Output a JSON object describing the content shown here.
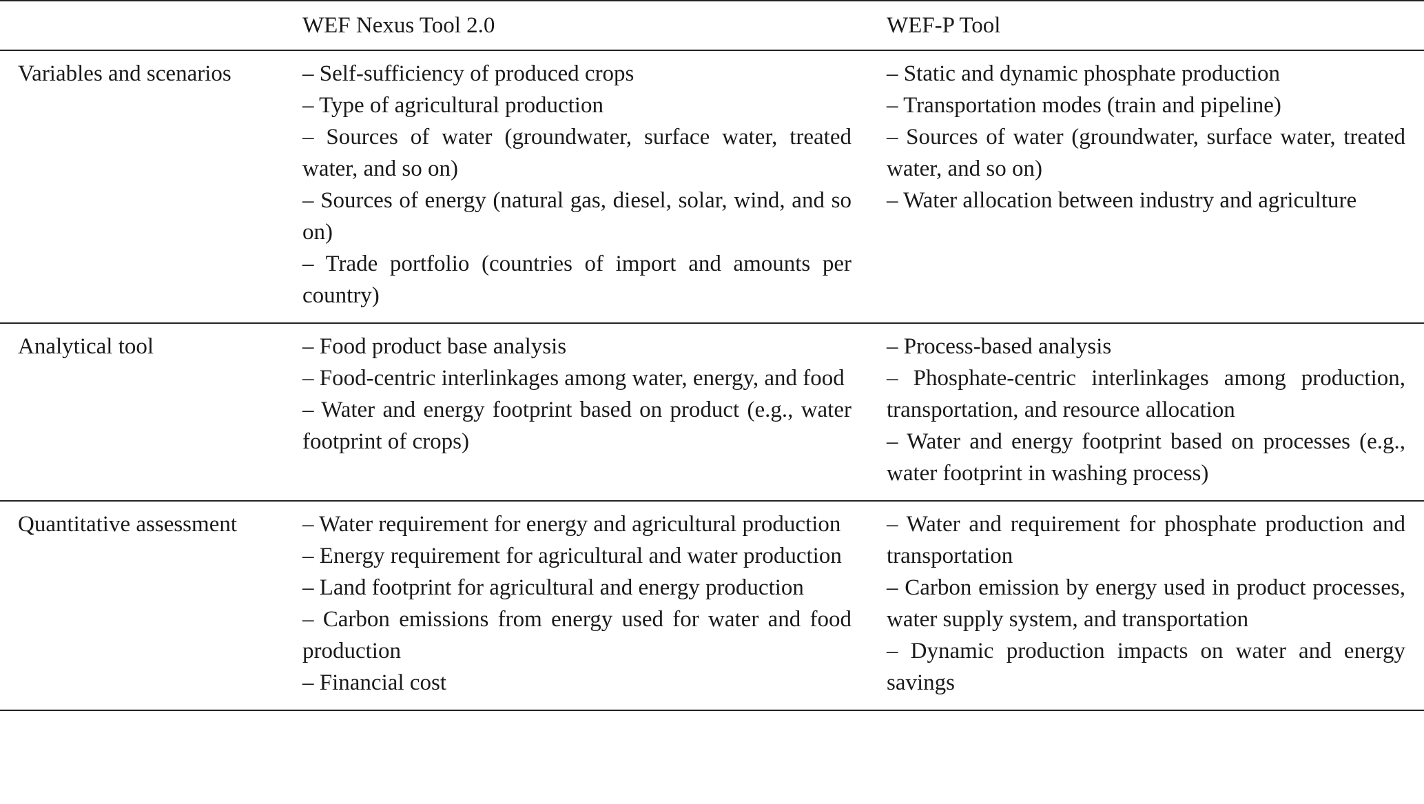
{
  "table": {
    "columns": [
      "WEF Nexus Tool 2.0",
      "WEF-P Tool"
    ],
    "rows": [
      {
        "label": "Variables and  scenarios",
        "cells": [
          [
            "– Self-sufficiency of produced crops",
            "– Type of agricultural production",
            "– Sources of water (groundwater, surface water, treated water, and so on)",
            "– Sources of energy (natural gas, diesel, solar, wind, and so on)",
            "– Trade portfolio (countries of import and amounts per country)"
          ],
          [
            "– Static and dynamic phosphate production",
            "– Transportation modes (train and pipeline)",
            "– Sources of water (groundwater, surface water, treated water, and so on)",
            "– Water allocation between industry and agriculture"
          ]
        ]
      },
      {
        "label": "Analytical tool",
        "cells": [
          [
            "– Food product base analysis",
            "– Food-centric interlinkages among water, energy, and food",
            "– Water and energy footprint based on product (e.g., water footprint of crops)"
          ],
          [
            "– Process-based analysis",
            "– Phosphate-centric interlinkages among production, transportation, and resource allocation",
            "– Water and energy footprint based on processes (e.g., water footprint in washing process)"
          ]
        ]
      },
      {
        "label": "Quantitative assessment",
        "cells": [
          [
            "– Water requirement for energy and agricultural production",
            "– Energy requirement for agricultural and water production",
            "– Land footprint for agricultural and energy production",
            "– Carbon emissions from energy used for water and food production",
            "– Financial cost"
          ],
          [
            "– Water and requirement for phosphate production and transportation",
            "– Carbon emission by energy used in product processes, water supply system, and transportation",
            "– Dynamic production impacts on water and energy savings"
          ]
        ]
      }
    ]
  }
}
